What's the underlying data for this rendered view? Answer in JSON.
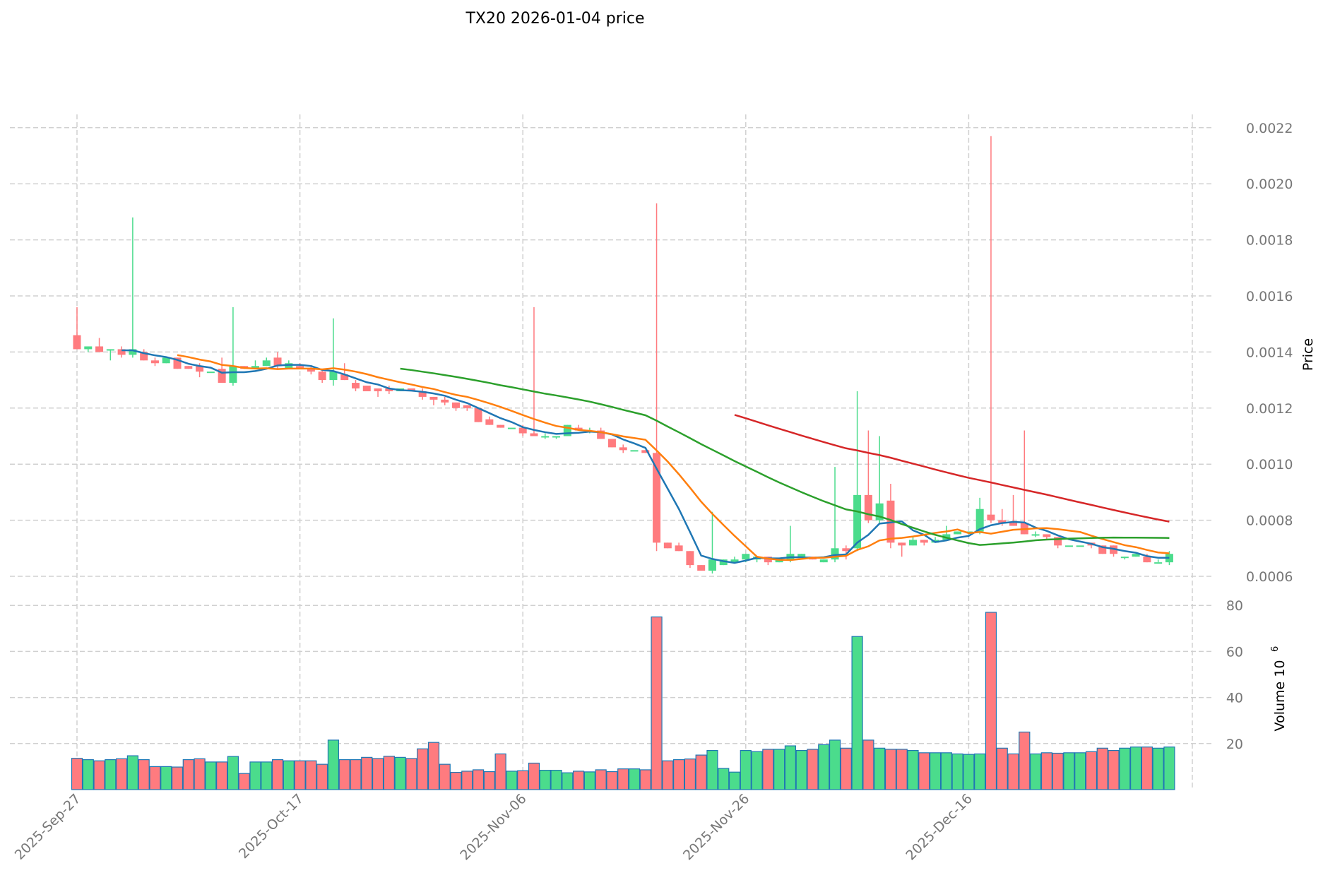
{
  "chart_data": {
    "type": "candlestick",
    "title": "TX20  2026-01-04  price",
    "ylabel": "Price",
    "volume_label": "Volume  10",
    "volume_exponent": "6",
    "ylim": [
      0.00055,
      0.00225
    ],
    "volume_ylim": [
      0,
      80
    ],
    "price_ticks": [
      "0.0006",
      "0.0008",
      "0.0010",
      "0.0012",
      "0.0014",
      "0.0016",
      "0.0018",
      "0.0020",
      "0.0022"
    ],
    "volume_ticks": [
      "20",
      "40",
      "60",
      "80"
    ],
    "x_ticks": [
      {
        "label": "2025-Sep-27",
        "index": 0
      },
      {
        "label": "2025-Oct-17",
        "index": 20
      },
      {
        "label": "2025-Nov-06",
        "index": 40
      },
      {
        "label": "2025-Nov-26",
        "index": 60
      },
      {
        "label": "2025-Dec-16",
        "index": 80
      }
    ],
    "start_date": "2025-09-27",
    "grid": true,
    "colors": {
      "up": "#4bdc8c",
      "down": "#ff7b7f",
      "volume_edge": "#1f77b4",
      "grid": "#d0d0d0"
    },
    "moving_averages": [
      {
        "window": 5,
        "color": "#1f77b4"
      },
      {
        "window": 10,
        "color": "#ff7f0e"
      },
      {
        "window": 30,
        "color": "#2ca02c"
      },
      {
        "window": 60,
        "color": "#d62728"
      }
    ],
    "ohlcv": [
      [
        0.00146,
        0.00156,
        0.00141,
        0.00141,
        13.6
      ],
      [
        0.00141,
        0.00142,
        0.0014,
        0.00142,
        13
      ],
      [
        0.00142,
        0.00145,
        0.0014,
        0.0014,
        12.5
      ],
      [
        0.00141,
        0.00141,
        0.00137,
        0.00141,
        13
      ],
      [
        0.00141,
        0.00142,
        0.00138,
        0.00139,
        13.4
      ],
      [
        0.00139,
        0.00188,
        0.00138,
        0.00141,
        14.7
      ],
      [
        0.0014,
        0.00141,
        0.00137,
        0.00137,
        13
      ],
      [
        0.00137,
        0.00138,
        0.00135,
        0.00136,
        10
      ],
      [
        0.00136,
        0.00138,
        0.00136,
        0.00138,
        10
      ],
      [
        0.00138,
        0.00138,
        0.00134,
        0.00134,
        9.8
      ],
      [
        0.00135,
        0.00135,
        0.00134,
        0.00134,
        13
      ],
      [
        0.00135,
        0.00136,
        0.00131,
        0.00133,
        13.4
      ],
      [
        0.00133,
        0.00133,
        0.00133,
        0.00133,
        12
      ],
      [
        0.00134,
        0.00138,
        0.00129,
        0.00129,
        12
      ],
      [
        0.00129,
        0.00156,
        0.00128,
        0.00135,
        14.4
      ],
      [
        0.00135,
        0.00135,
        0.00134,
        0.00134,
        7
      ],
      [
        0.00134,
        0.00137,
        0.00134,
        0.00135,
        12
      ],
      [
        0.00135,
        0.00138,
        0.00135,
        0.00137,
        12
      ],
      [
        0.00138,
        0.0014,
        0.00134,
        0.00135,
        13
      ],
      [
        0.00134,
        0.00137,
        0.00134,
        0.00136,
        12.5
      ],
      [
        0.00135,
        0.00136,
        0.00134,
        0.00134,
        12.5
      ],
      [
        0.00134,
        0.00135,
        0.00132,
        0.00133,
        12.5
      ],
      [
        0.00133,
        0.00134,
        0.00129,
        0.0013,
        11
      ],
      [
        0.0013,
        0.00152,
        0.00128,
        0.00133,
        21.5
      ],
      [
        0.00132,
        0.00136,
        0.0013,
        0.0013,
        13
      ],
      [
        0.00129,
        0.0013,
        0.00126,
        0.00127,
        13
      ],
      [
        0.00128,
        0.00128,
        0.00126,
        0.00126,
        14
      ],
      [
        0.00127,
        0.00127,
        0.00124,
        0.00126,
        13.5
      ],
      [
        0.00127,
        0.00128,
        0.00125,
        0.00126,
        14.5
      ],
      [
        0.00126,
        0.00127,
        0.00126,
        0.00127,
        14
      ],
      [
        0.00127,
        0.00127,
        0.00126,
        0.00126,
        13.5
      ],
      [
        0.00126,
        0.00127,
        0.00123,
        0.00124,
        17.7
      ],
      [
        0.00124,
        0.00124,
        0.00121,
        0.00123,
        20.5
      ],
      [
        0.00123,
        0.00124,
        0.00121,
        0.00122,
        11
      ],
      [
        0.00122,
        0.00122,
        0.00119,
        0.0012,
        7.5
      ],
      [
        0.00121,
        0.00121,
        0.00119,
        0.0012,
        8
      ],
      [
        0.0012,
        0.0012,
        0.00115,
        0.00115,
        8.6
      ],
      [
        0.00116,
        0.00117,
        0.00114,
        0.00114,
        7.8
      ],
      [
        0.00114,
        0.00114,
        0.00113,
        0.00113,
        15.5
      ],
      [
        0.00113,
        0.00113,
        0.00113,
        0.00113,
        8
      ],
      [
        0.00113,
        0.00114,
        0.0011,
        0.00111,
        8.2
      ],
      [
        0.00111,
        0.00156,
        0.0011,
        0.0011,
        11.5
      ],
      [
        0.0011,
        0.00111,
        0.00109,
        0.0011,
        8.4
      ],
      [
        0.0011,
        0.0011,
        0.00109,
        0.0011,
        8.4
      ],
      [
        0.0011,
        0.00114,
        0.0011,
        0.00114,
        7.3
      ],
      [
        0.00113,
        0.00114,
        0.00112,
        0.00112,
        8
      ],
      [
        0.00112,
        0.00113,
        0.00111,
        0.00112,
        7.7
      ],
      [
        0.00112,
        0.00113,
        0.00109,
        0.00109,
        8.6
      ],
      [
        0.00109,
        0.00109,
        0.00106,
        0.00106,
        7.8
      ],
      [
        0.00106,
        0.00107,
        0.00104,
        0.00105,
        9
      ],
      [
        0.00105,
        0.00105,
        0.00105,
        0.00105,
        9
      ],
      [
        0.00105,
        0.00105,
        0.00104,
        0.00104,
        8.6
      ],
      [
        0.00104,
        0.00193,
        0.00069,
        0.00072,
        75
      ],
      [
        0.00072,
        0.00072,
        0.0007,
        0.0007,
        12.5
      ],
      [
        0.00071,
        0.00072,
        0.00069,
        0.00069,
        13
      ],
      [
        0.00069,
        0.00069,
        0.00063,
        0.00064,
        13.3
      ],
      [
        0.00064,
        0.00064,
        0.00062,
        0.00062,
        15
      ],
      [
        0.00062,
        0.00083,
        0.00061,
        0.00066,
        17
      ],
      [
        0.00064,
        0.00066,
        0.00064,
        0.00066,
        9.2
      ],
      [
        0.00065,
        0.00067,
        0.00065,
        0.00066,
        7.6
      ],
      [
        0.00066,
        0.00068,
        0.00065,
        0.00068,
        17
      ],
      [
        0.00066,
        0.00067,
        0.00065,
        0.00067,
        16.5
      ],
      [
        0.00067,
        0.00067,
        0.00064,
        0.00065,
        17.5
      ],
      [
        0.00065,
        0.00066,
        0.00065,
        0.00066,
        17.5
      ],
      [
        0.00066,
        0.00078,
        0.00065,
        0.00068,
        19
      ],
      [
        0.00067,
        0.00068,
        0.00067,
        0.00068,
        17
      ],
      [
        0.00067,
        0.00067,
        0.00066,
        0.00066,
        17.5
      ],
      [
        0.00065,
        0.00066,
        0.00065,
        0.00066,
        19.5
      ],
      [
        0.00066,
        0.00099,
        0.00065,
        0.0007,
        21.5
      ],
      [
        0.0007,
        0.00071,
        0.00066,
        0.00069,
        18
      ],
      [
        0.0007,
        0.00126,
        0.00069,
        0.00089,
        66.5
      ],
      [
        0.00089,
        0.00112,
        0.00079,
        0.0008,
        21.5
      ],
      [
        0.0008,
        0.0011,
        0.00079,
        0.00086,
        18
      ],
      [
        0.00087,
        0.00093,
        0.0007,
        0.00072,
        17.5
      ],
      [
        0.00072,
        0.00072,
        0.00067,
        0.00071,
        17.5
      ],
      [
        0.00071,
        0.00074,
        0.00071,
        0.00073,
        17
      ],
      [
        0.00073,
        0.00073,
        0.00071,
        0.00072,
        16
      ],
      [
        0.00072,
        0.00074,
        0.00072,
        0.00073,
        16
      ],
      [
        0.00073,
        0.00078,
        0.00073,
        0.00075,
        16
      ],
      [
        0.00075,
        0.00076,
        0.00075,
        0.00076,
        15.5
      ],
      [
        0.00076,
        0.00076,
        0.00075,
        0.00076,
        15.3
      ],
      [
        0.00076,
        0.00088,
        0.00075,
        0.00084,
        15.5
      ],
      [
        0.00082,
        0.00217,
        0.00079,
        0.0008,
        77
      ],
      [
        0.0008,
        0.00084,
        0.00078,
        0.00079,
        18
      ],
      [
        0.00079,
        0.00089,
        0.00078,
        0.00078,
        15.5
      ],
      [
        0.00079,
        0.00112,
        0.00075,
        0.00075,
        25
      ],
      [
        0.00075,
        0.00076,
        0.00074,
        0.00075,
        15.5
      ],
      [
        0.00075,
        0.00075,
        0.00073,
        0.00074,
        16
      ],
      [
        0.00074,
        0.00074,
        0.0007,
        0.00071,
        15.8
      ],
      [
        0.00071,
        0.00071,
        0.00071,
        0.00071,
        16
      ],
      [
        0.00071,
        0.00071,
        0.00071,
        0.00071,
        16
      ],
      [
        0.00072,
        0.00072,
        0.0007,
        0.00071,
        16.5
      ],
      [
        0.00071,
        0.00071,
        0.00068,
        0.00068,
        18
      ],
      [
        0.00071,
        0.00071,
        0.00067,
        0.00068,
        17
      ],
      [
        0.00067,
        0.00067,
        0.00066,
        0.00067,
        18
      ],
      [
        0.00067,
        0.00068,
        0.00067,
        0.00068,
        18.5
      ],
      [
        0.00067,
        0.00068,
        0.00065,
        0.00065,
        18.5
      ],
      [
        0.00065,
        0.00066,
        0.00065,
        0.00065,
        18
      ],
      [
        0.00065,
        0.00069,
        0.00064,
        0.00068,
        18.5
      ]
    ]
  }
}
